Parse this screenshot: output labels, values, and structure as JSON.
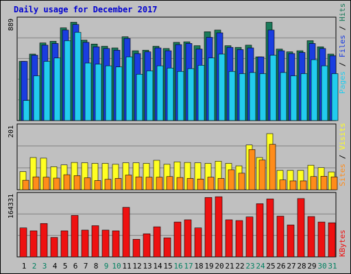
{
  "chart_data": {
    "type": "bar",
    "title": "Daily usage for December 2017",
    "categories": [
      "1",
      "2",
      "3",
      "4",
      "5",
      "6",
      "7",
      "8",
      "9",
      "10",
      "11",
      "12",
      "13",
      "14",
      "15",
      "16",
      "17",
      "18",
      "19",
      "20",
      "21",
      "22",
      "23",
      "24",
      "25",
      "26",
      "27",
      "28",
      "29",
      "30",
      "31"
    ],
    "weekend_days": [
      "2",
      "3",
      "9",
      "10",
      "16",
      "17",
      "23",
      "24",
      "30",
      "31"
    ],
    "colors": {
      "hits": "#1a7a5a",
      "files": "#1a3de0",
      "pages": "#22ccee",
      "visits": "#ffff22",
      "sites": "#ff8c1a",
      "kbytes": "#ee1111",
      "weekday_label": "#000000",
      "weekend_label": "#008060"
    },
    "panels": [
      {
        "ylabel_max": "889",
        "ymax": 889,
        "series": [
          {
            "name": "Hits",
            "values": [
              530,
              595,
              695,
              710,
              830,
              880,
              720,
              685,
              665,
              650,
              750,
              625,
              630,
              665,
              645,
              700,
              705,
              670,
              795,
              810,
              670,
              655,
              675,
              570,
              880,
              640,
              615,
              625,
              715,
              660,
              595
            ]
          },
          {
            "name": "Files",
            "values": [
              530,
              585,
              675,
              690,
              810,
              860,
              700,
              660,
              645,
              630,
              735,
              600,
              615,
              650,
              625,
              680,
              690,
              640,
              745,
              785,
              655,
              635,
              650,
              570,
              810,
              625,
              600,
              610,
              690,
              645,
              580
            ]
          },
          {
            "name": "Pages",
            "values": [
              180,
              400,
              530,
              560,
              715,
              790,
              515,
              505,
              490,
              480,
              570,
              415,
              445,
              490,
              470,
              440,
              465,
              495,
              560,
              595,
              440,
              420,
              430,
              420,
              585,
              430,
              400,
              420,
              545,
              490,
              420
            ]
          }
        ]
      },
      {
        "ylabel_max": "201",
        "ymax": 201,
        "series": [
          {
            "name": "Visits",
            "values": [
              59,
              105,
              103,
              75,
              81,
              89,
              88,
              86,
              86,
              83,
              88,
              88,
              86,
              96,
              83,
              91,
              89,
              88,
              86,
              93,
              86,
              78,
              146,
              105,
              183,
              63,
              63,
              63,
              80,
              72,
              58
            ]
          },
          {
            "name": "Sites",
            "values": [
              31,
              42,
              41,
              38,
              49,
              46,
              39,
              30,
              34,
              37,
              48,
              42,
              41,
              41,
              43,
              40,
              37,
              35,
              41,
              37,
              65,
              54,
              131,
              97,
              148,
              32,
              29,
              29,
              43,
              44,
              42
            ]
          }
        ]
      },
      {
        "ylabel_max": "164331",
        "ymax": 164331,
        "series": [
          {
            "name": "KBytes",
            "values": [
              79000,
              71000,
              91000,
              53000,
              71000,
              113000,
              73000,
              85000,
              73000,
              71000,
              135000,
              48000,
              63000,
              82000,
              52000,
              95000,
              101000,
              79000,
              162000,
              164000,
              101000,
              99000,
              109000,
              145000,
              158000,
              111000,
              87000,
              159000,
              110000,
              95000,
              93000
            ]
          }
        ]
      }
    ],
    "right_labels": {
      "top": [
        {
          "text": "Pages",
          "key": "pages"
        },
        {
          "text": " / ",
          "key": "sep"
        },
        {
          "text": "Files",
          "key": "files"
        },
        {
          "text": " / ",
          "key": "sep"
        },
        {
          "text": "Hits",
          "key": "hits"
        }
      ],
      "middle": [
        {
          "text": "Sites",
          "key": "sites"
        },
        {
          "text": " / ",
          "key": "sep"
        },
        {
          "text": "Visits",
          "key": "visits"
        }
      ],
      "bottom": [
        {
          "text": "KBytes",
          "key": "kbytes"
        }
      ]
    }
  }
}
